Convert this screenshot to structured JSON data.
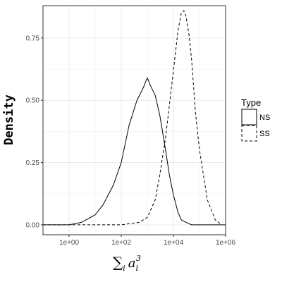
{
  "chart_data": {
    "type": "line",
    "xlabel": "Σ_i a_i^3",
    "xlabel_parts": {
      "sigma": "∑",
      "sub_i": "i",
      "a": "a",
      "a_sub": "i",
      "a_sup": "3"
    },
    "ylabel": "Density",
    "x_scale": "log10",
    "xlim": [
      0.1,
      1000000
    ],
    "ylim": [
      0,
      0.88
    ],
    "x_ticks": [
      1,
      100,
      10000,
      1000000
    ],
    "x_tick_labels": [
      "1e+00",
      "1e+02",
      "1e+04",
      "1e+06"
    ],
    "y_ticks": [
      0,
      0.25,
      0.5,
      0.75
    ],
    "y_tick_labels": [
      "0.00",
      "0.25",
      "0.50",
      "0.75"
    ],
    "grid": true,
    "legend": {
      "title": "Type",
      "placement": "right"
    },
    "series": [
      {
        "name": "NS",
        "linestyle": "solid",
        "x": [
          0.1,
          1,
          3,
          10,
          20,
          50,
          100,
          200,
          400,
          700,
          900,
          1000,
          1300,
          2000,
          3000,
          5000,
          7000,
          10000,
          15000,
          20000,
          30000,
          50000,
          100000,
          1000000
        ],
        "y": [
          0.0,
          0.0,
          0.01,
          0.04,
          0.08,
          0.16,
          0.25,
          0.4,
          0.5,
          0.55,
          0.58,
          0.59,
          0.56,
          0.52,
          0.44,
          0.3,
          0.2,
          0.12,
          0.05,
          0.02,
          0.01,
          0.0,
          0.0,
          0.0
        ]
      },
      {
        "name": "SS",
        "linestyle": "dashed",
        "x": [
          0.1,
          10,
          100,
          500,
          1000,
          2000,
          3000,
          5000,
          7000,
          10000,
          15000,
          20000,
          25000,
          30000,
          40000,
          50000,
          70000,
          100000,
          200000,
          400000,
          700000
        ],
        "y": [
          0.0,
          0.0,
          0.0,
          0.01,
          0.03,
          0.1,
          0.2,
          0.35,
          0.48,
          0.62,
          0.78,
          0.85,
          0.86,
          0.84,
          0.76,
          0.66,
          0.45,
          0.3,
          0.1,
          0.02,
          0.0
        ]
      }
    ]
  }
}
